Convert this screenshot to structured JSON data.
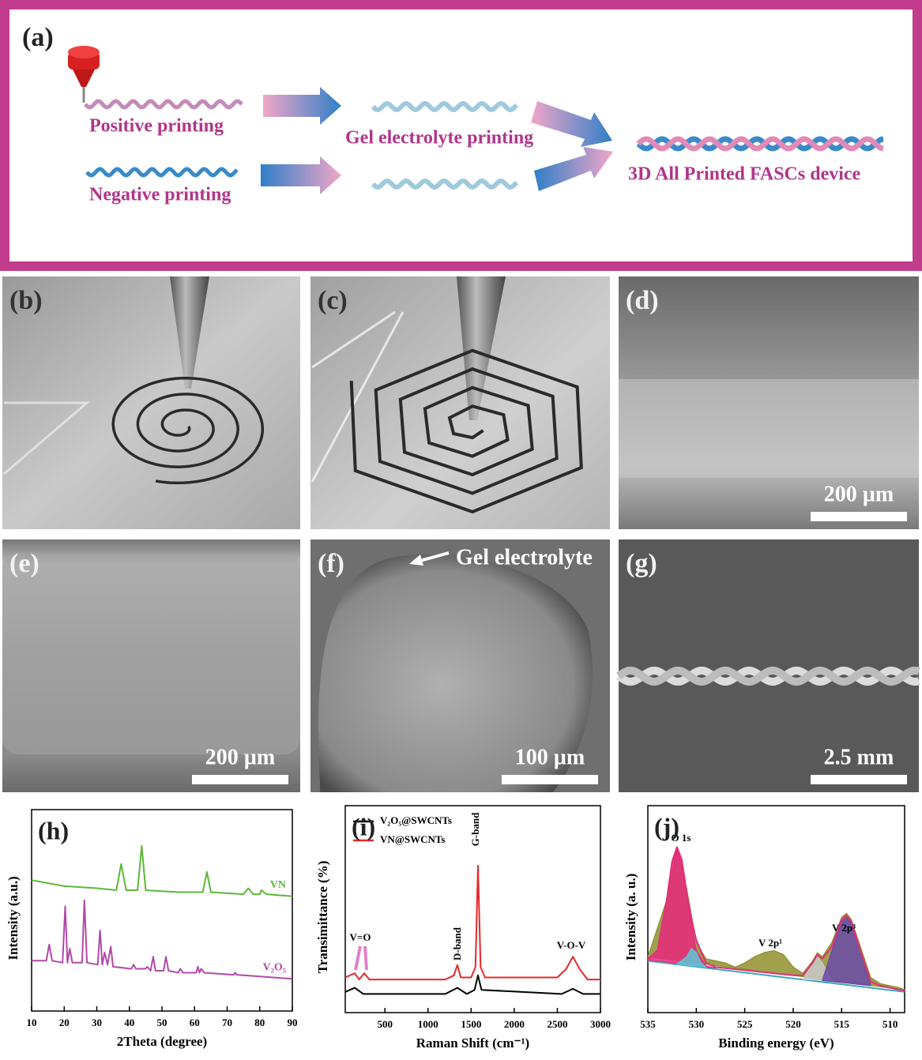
{
  "panel_a": {
    "label": "(a)",
    "positive": "Positive printing",
    "negative": "Negative printing",
    "gel": "Gel electrolyte printing",
    "device": "3D All Printed FASCs device"
  },
  "photos": [
    {
      "label": "(b)"
    },
    {
      "label": "(c)"
    },
    {
      "label": "(d)",
      "scale_bar": "200 µm"
    },
    {
      "label": "(e)",
      "scale_bar": "200 µm"
    },
    {
      "label": "(f)",
      "scale_bar": "100 µm",
      "annotation": "Gel electrolyte"
    },
    {
      "label": "(g)",
      "scale_bar": "2.5 mm"
    }
  ],
  "chart_data": [
    {
      "type": "line",
      "panel_label": "(h)",
      "xlabel": "2Theta (degree)",
      "ylabel": "Intensity (a.u.)",
      "xlim": [
        10,
        90
      ],
      "xticks": [
        10,
        20,
        30,
        40,
        50,
        60,
        70,
        80,
        90
      ],
      "ylim": [
        0,
        100
      ],
      "series": [
        {
          "name": "VN",
          "color": "#5cb83a",
          "x": [
            10,
            20,
            30,
            36,
            37.5,
            39,
            42.5,
            43.8,
            45,
            55,
            62.5,
            63.8,
            65,
            75,
            76.5,
            78,
            80,
            80.5,
            82,
            90
          ],
          "values": [
            65,
            62,
            61,
            60,
            73,
            60,
            60,
            82,
            60,
            59,
            59,
            69,
            59,
            58,
            61,
            58,
            58,
            60,
            58,
            57
          ]
        },
        {
          "name": "V₂O₅",
          "color": "#b04aa8",
          "x": [
            10,
            14.5,
            15.4,
            16.3,
            19.5,
            20.3,
            21,
            21.7,
            22.5,
            25.5,
            26.2,
            27,
            30.3,
            31,
            31.7,
            32.4,
            33.3,
            34.3,
            35,
            40.6,
            41.3,
            42,
            45,
            45.5,
            46.5,
            47.3,
            48,
            50.5,
            51.2,
            52,
            55,
            55.6,
            56.5,
            60.5,
            61,
            61.5,
            62,
            63,
            72,
            72.5,
            73,
            90
          ],
          "values": [
            25,
            25,
            33,
            25,
            24,
            52,
            24,
            31,
            24,
            24,
            55,
            24,
            23,
            40,
            23,
            29,
            23,
            32,
            22,
            21,
            23,
            21,
            21,
            22,
            20,
            27,
            20,
            20,
            27,
            20,
            19,
            21,
            19,
            19,
            22,
            19,
            21,
            19,
            18,
            19,
            18,
            16
          ]
        }
      ]
    },
    {
      "type": "line",
      "panel_label": "(i)",
      "xlabel": "Raman Shift (cm⁻¹)",
      "ylabel": "Transimittance (%)",
      "xlim": [
        40,
        3000
      ],
      "xticks": [
        500,
        1000,
        1500,
        2000,
        2500,
        3000
      ],
      "ylim": [
        0,
        100
      ],
      "legend": "upper left",
      "annotations": [
        "V=O",
        "D-band",
        "G-band",
        "V-O-V"
      ],
      "series": [
        {
          "name": "V₂O₅@SWCNTs",
          "color": "#000000",
          "x": [
            40,
            150,
            250,
            1200,
            1340,
            1450,
            1540,
            1580,
            1620,
            2550,
            2680,
            2800,
            3000
          ],
          "values": [
            10,
            12,
            9,
            9,
            12,
            9,
            11,
            18,
            11,
            9,
            11.5,
            9,
            9
          ]
        },
        {
          "name": "VN@SWCNTs",
          "color": "#e8282a",
          "x": [
            40,
            150,
            200,
            260,
            320,
            1200,
            1300,
            1340,
            1380,
            1500,
            1550,
            1580,
            1610,
            1660,
            2500,
            2600,
            2680,
            2760,
            2850,
            3000
          ],
          "values": [
            17,
            19,
            16,
            19,
            16,
            16,
            18,
            23,
            17,
            17,
            22,
            71,
            22,
            17,
            17,
            21,
            27,
            21,
            16,
            16
          ]
        }
      ]
    },
    {
      "type": "line",
      "panel_label": "(j)",
      "xlabel": "Binding energy (eV)",
      "ylabel": "Intensity (a. u.)",
      "xlim": [
        535,
        508.5
      ],
      "xticks": [
        535,
        530,
        525,
        520,
        515,
        510
      ],
      "ylim": [
        0,
        100
      ],
      "annotations": [
        "O 1s",
        "V 2p¹",
        "V 2p³"
      ],
      "series": [
        {
          "color": "#8f8f2e",
          "fill": true,
          "x": [
            535,
            533,
            532,
            531,
            530,
            529,
            528,
            527,
            526,
            525,
            524,
            523,
            522,
            521,
            520,
            519,
            518,
            517.5,
            517,
            516,
            515,
            514.5,
            514,
            513,
            512,
            511,
            510,
            509,
            508.5
          ],
          "values": [
            27,
            55,
            79,
            60,
            34,
            26,
            25,
            24,
            22,
            24,
            27,
            29,
            30,
            28,
            22,
            19,
            25,
            29,
            27,
            34,
            46,
            48,
            45,
            31,
            17,
            14,
            13,
            12,
            11
          ]
        },
        {
          "color": "#3aa8b8",
          "x": [
            535,
            508.5
          ],
          "values": [
            25,
            10
          ]
        },
        {
          "color": "#e8287d",
          "fill": true,
          "x": [
            535,
            534,
            533,
            532.5,
            532,
            531.5,
            531,
            530,
            529,
            528
          ],
          "values": [
            25.5,
            30,
            55,
            72,
            79,
            72,
            55,
            30,
            22.5,
            21.5
          ]
        },
        {
          "color": "#5cc8d8",
          "fill": true,
          "x": [
            532,
            531,
            530.5,
            530,
            529.5,
            529
          ],
          "values": [
            23.5,
            27,
            31,
            29,
            24,
            22
          ]
        },
        {
          "color": "#c8c8c8",
          "fill": true,
          "x": [
            519,
            518,
            517.5,
            517,
            516
          ],
          "values": [
            16,
            24,
            27,
            24,
            15.5
          ]
        },
        {
          "color": "#6a4aa8",
          "fill": true,
          "x": [
            517,
            516,
            515,
            514.5,
            514,
            513,
            512
          ],
          "values": [
            15.5,
            30,
            44,
            46,
            43,
            28,
            13
          ]
        },
        {
          "color": "#e0307a",
          "x": [
            535,
            534,
            533,
            532.5,
            532,
            531.5,
            531,
            530.5,
            530,
            529,
            528,
            526,
            524,
            522,
            520,
            519,
            518,
            517.5,
            517,
            516,
            515,
            514.5,
            514,
            513,
            512,
            511,
            510,
            508.5
          ],
          "values": [
            26,
            30,
            56,
            73,
            80,
            74,
            58,
            45,
            35,
            24,
            22,
            21,
            20,
            19,
            18,
            18,
            24,
            28,
            26,
            32,
            45,
            47,
            44,
            29,
            15,
            13,
            12,
            10.5
          ]
        }
      ]
    }
  ]
}
